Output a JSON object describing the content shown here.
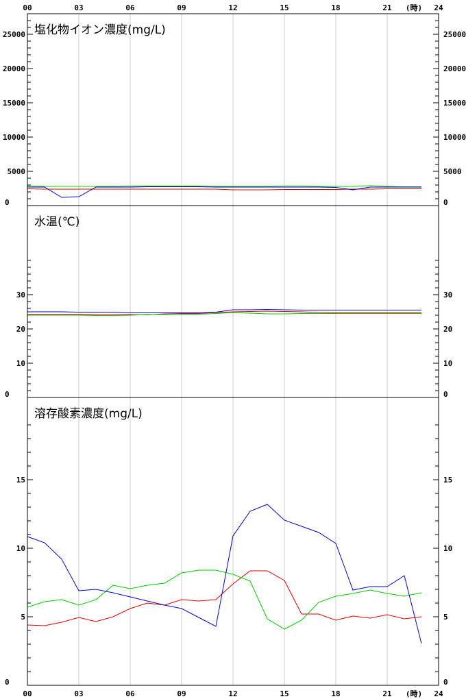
{
  "chart_data": [
    {
      "type": "line",
      "title": "塩化物イオン濃度(mg/L)",
      "x_unit": "(時)",
      "x_ticks": [
        "00",
        "03",
        "06",
        "09",
        "12",
        "15",
        "18",
        "21",
        "24"
      ],
      "ylim": [
        0,
        28000
      ],
      "y_ticks": [
        0,
        5000,
        10000,
        15000,
        20000,
        25000
      ],
      "y_minor_step": 1000,
      "x": [
        0,
        1,
        2,
        3,
        4,
        5,
        6,
        7,
        8,
        9,
        10,
        11,
        12,
        13,
        14,
        15,
        16,
        17,
        18,
        19,
        20,
        21,
        22,
        23
      ],
      "series": [
        {
          "color": "#dd0000",
          "values": [
            2450,
            2400,
            2400,
            2400,
            2400,
            2400,
            2400,
            2400,
            2400,
            2400,
            2400,
            2400,
            2300,
            2300,
            2300,
            2350,
            2350,
            2350,
            2350,
            2400,
            2400,
            2450,
            2450,
            2450
          ]
        },
        {
          "color": "#00cc00",
          "values": [
            2850,
            2800,
            2800,
            2800,
            2800,
            2800,
            2850,
            2850,
            2850,
            2850,
            2850,
            2800,
            2800,
            2800,
            2800,
            2850,
            2850,
            2800,
            2800,
            2800,
            2900,
            2800,
            2750,
            2750
          ]
        },
        {
          "color": "#0000cc",
          "values": [
            2700,
            2700,
            1200,
            1300,
            2700,
            2700,
            2700,
            2750,
            2750,
            2750,
            2750,
            2700,
            2700,
            2700,
            2700,
            2700,
            2700,
            2700,
            2650,
            2300,
            2700,
            2700,
            2700,
            2700
          ]
        }
      ]
    },
    {
      "type": "line",
      "title": "水温(℃)",
      "ylim": [
        0,
        56
      ],
      "y_ticks": [
        0,
        10,
        20,
        30
      ],
      "y_minor_step": 2,
      "y_minor_max": 40,
      "x": [
        0,
        1,
        2,
        3,
        4,
        5,
        6,
        7,
        8,
        9,
        10,
        11,
        12,
        13,
        14,
        15,
        16,
        17,
        18,
        19,
        20,
        21,
        22,
        23
      ],
      "series": [
        {
          "color": "#dd0000",
          "values": [
            24.3,
            24.3,
            24.3,
            24.3,
            24.2,
            24.2,
            24.2,
            24.1,
            24.4,
            24.5,
            24.5,
            24.8,
            25.0,
            25.1,
            25.2,
            25.1,
            25.0,
            24.8,
            24.7,
            24.7,
            24.7,
            24.7,
            24.7,
            24.7
          ]
        },
        {
          "color": "#00cc00",
          "values": [
            24.0,
            24.0,
            24.0,
            24.0,
            23.9,
            23.9,
            24.0,
            24.2,
            24.2,
            24.3,
            24.3,
            24.5,
            24.8,
            24.6,
            24.4,
            24.4,
            24.5,
            24.5,
            24.5,
            24.5,
            24.5,
            24.5,
            24.5,
            24.5
          ]
        },
        {
          "color": "#0000cc",
          "values": [
            25.0,
            25.0,
            25.0,
            24.9,
            24.9,
            24.9,
            24.7,
            24.7,
            24.7,
            24.7,
            24.7,
            24.9,
            25.6,
            25.6,
            25.7,
            25.6,
            25.5,
            25.5,
            25.5,
            25.5,
            25.5,
            25.5,
            25.5,
            25.5
          ]
        }
      ]
    },
    {
      "type": "line",
      "title": "溶存酸素濃度(mg/L)",
      "x_unit": "(時)",
      "x_ticks": [
        "00",
        "03",
        "06",
        "09",
        "12",
        "15",
        "18",
        "21",
        "24"
      ],
      "ylim": [
        0,
        21
      ],
      "y_ticks": [
        0,
        5,
        10,
        15
      ],
      "y_minor_step": 1,
      "y_minor_max": 19,
      "x": [
        0,
        1,
        2,
        3,
        4,
        5,
        6,
        7,
        8,
        9,
        10,
        11,
        12,
        13,
        14,
        15,
        16,
        17,
        18,
        19,
        20,
        21,
        22,
        23
      ],
      "series": [
        {
          "color": "#dd0000",
          "values": [
            4.4,
            4.35,
            4.6,
            4.95,
            4.65,
            5.0,
            5.6,
            6.0,
            5.85,
            6.25,
            6.15,
            6.25,
            7.4,
            8.35,
            8.35,
            7.65,
            5.2,
            5.2,
            4.75,
            5.05,
            4.9,
            5.15,
            4.85,
            5.0
          ]
        },
        {
          "color": "#00cc00",
          "values": [
            5.7,
            6.1,
            6.25,
            5.85,
            6.25,
            7.3,
            7.05,
            7.3,
            7.45,
            8.2,
            8.4,
            8.4,
            8.1,
            7.6,
            4.85,
            4.1,
            4.75,
            6.05,
            6.5,
            6.7,
            6.95,
            6.7,
            6.5,
            6.75
          ]
        },
        {
          "color": "#0000cc",
          "values": [
            10.85,
            10.4,
            9.2,
            6.9,
            7.0,
            6.75,
            6.45,
            6.15,
            5.85,
            5.6,
            4.95,
            4.3,
            10.9,
            12.7,
            13.2,
            12.05,
            11.6,
            11.15,
            10.35,
            6.95,
            7.2,
            7.2,
            8.0,
            3.05
          ]
        }
      ]
    }
  ]
}
